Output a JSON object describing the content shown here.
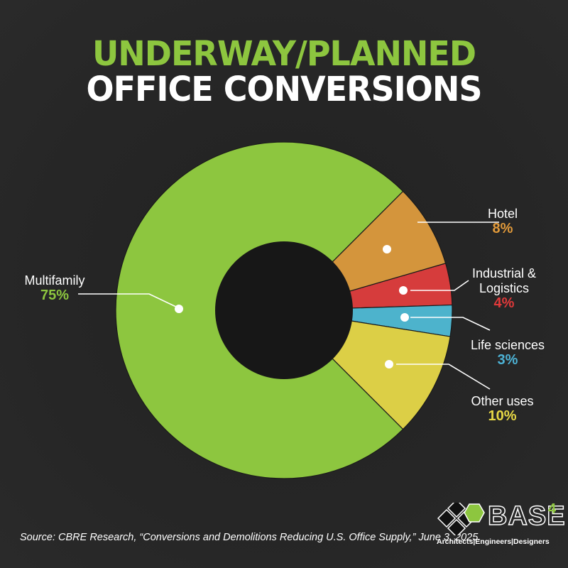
{
  "title": {
    "line1": "UNDERWAY/PLANNED",
    "line2": "OFFICE CONVERSIONS"
  },
  "colors": {
    "background": "#262626",
    "hole": "#171717",
    "accent_green": "#8dc63f"
  },
  "chart_data": {
    "type": "pie",
    "variant": "donut",
    "title": "Underway/Planned Office Conversions",
    "unit": "%",
    "categories": [
      "Hotel",
      "Industrial & Logistics",
      "Life sciences",
      "Other uses",
      "Multifamily"
    ],
    "values": [
      8,
      4,
      3,
      10,
      75
    ],
    "colors": [
      "#d4953c",
      "#d63c3c",
      "#4db3cc",
      "#dccf46",
      "#8dc63f"
    ],
    "legend": "callout labels"
  },
  "labels": {
    "hotel": {
      "name": "Hotel",
      "pct": "8%"
    },
    "industrial": {
      "name_line1": "Industrial &",
      "name_line2": "Logistics",
      "pct": "4%"
    },
    "life": {
      "name": "Life sciences",
      "pct": "3%"
    },
    "other": {
      "name": "Other uses",
      "pct": "10%"
    },
    "multifamily": {
      "name": "Multifamily",
      "pct": "75%"
    }
  },
  "source": "Source: CBRE Research, “Conversions and Demolitions Reducing U.S. Office Supply,” June 3, 2025.",
  "logo": {
    "name": "BASE",
    "superscript": "4",
    "tagline": "Architects|Engineers|Designers"
  }
}
